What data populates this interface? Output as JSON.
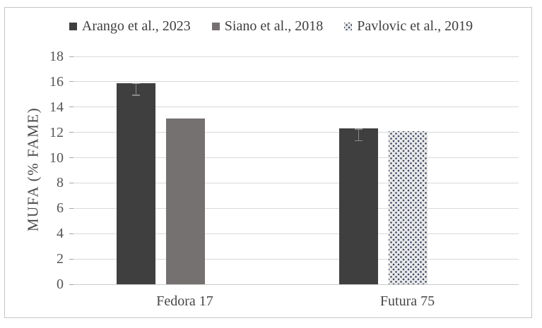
{
  "figure": {
    "kind": "grouped-bar-chart-figure",
    "background": "#ffffff",
    "border_color": "#c6c6c6"
  },
  "chart_data": {
    "type": "bar",
    "title": "",
    "xlabel": "",
    "ylabel": "MUFA (% FAME)",
    "ylim": [
      0,
      18
    ],
    "yticks": [
      0,
      2,
      4,
      6,
      8,
      10,
      12,
      14,
      16,
      18
    ],
    "grid": true,
    "legend_position": "top",
    "categories": [
      "Fedora 17",
      "Futura 75"
    ],
    "series": [
      {
        "name": "Arango et al., 2023",
        "style": "dark",
        "color": "#3f3f3f",
        "values": [
          15.9,
          12.3
        ],
        "errors": [
          1.0,
          1.0
        ]
      },
      {
        "name": "Siano et al., 2018",
        "style": "gray",
        "color": "#767171",
        "values": [
          13.1,
          null
        ],
        "errors": [
          null,
          null
        ]
      },
      {
        "name": "Pavlovic et al., 2019",
        "style": "dotted",
        "color": "#e9e9e9",
        "dot_color": "#394263",
        "values": [
          null,
          12.1
        ],
        "errors": [
          null,
          null
        ]
      }
    ],
    "colors": {
      "gridline": "#d9d9d9",
      "axis_line": "#cccccc",
      "tick_mark": "#a6a6a6",
      "tick_text": "#555555",
      "error_bar": "#8a8a8a"
    }
  }
}
